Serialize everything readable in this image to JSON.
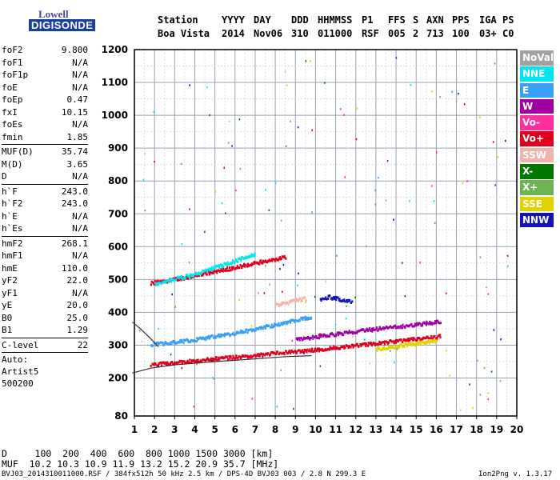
{
  "logo": {
    "line1": "Lowell",
    "line2": "DIGISONDE"
  },
  "header": {
    "labels": [
      "Station",
      "YYYY",
      "DAY",
      "DDD",
      "HHMMSS",
      "P1",
      "FFS",
      "S",
      "AXN",
      "PPS",
      "IGA",
      "PS"
    ],
    "values": [
      "Boa Vista",
      "2014",
      "Nov06",
      "310",
      "011000",
      "RSF",
      "005",
      "2",
      "713",
      "100",
      "03+",
      "C0"
    ]
  },
  "params": {
    "group1": [
      {
        "k": "foF2",
        "v": "9.800"
      },
      {
        "k": "foF1",
        "v": "N/A"
      },
      {
        "k": "foF1p",
        "v": "N/A"
      },
      {
        "k": "foE",
        "v": "N/A"
      },
      {
        "k": "foEp",
        "v": "0.47"
      },
      {
        "k": "fxI",
        "v": "10.15"
      },
      {
        "k": "foEs",
        "v": "N/A"
      },
      {
        "k": "fmin",
        "v": "1.85"
      }
    ],
    "group2": [
      {
        "k": "MUF(D)",
        "v": "35.74"
      },
      {
        "k": "M(D)",
        "v": "3.65"
      },
      {
        "k": "D",
        "v": "N/A"
      }
    ],
    "group3": [
      {
        "k": "h`F",
        "v": "243.0"
      },
      {
        "k": "h`F2",
        "v": "243.0"
      },
      {
        "k": "h`E",
        "v": "N/A"
      },
      {
        "k": "h`Es",
        "v": "N/A"
      }
    ],
    "group4": [
      {
        "k": "hmF2",
        "v": "268.1"
      },
      {
        "k": "hmF1",
        "v": "N/A"
      },
      {
        "k": "hmE",
        "v": "110.0"
      },
      {
        "k": "yF2",
        "v": "22.0"
      },
      {
        "k": "yF1",
        "v": "N/A"
      },
      {
        "k": "yE",
        "v": "20.0"
      },
      {
        "k": "B0",
        "v": "25.0"
      },
      {
        "k": "B1",
        "v": "1.29"
      }
    ],
    "clevel": {
      "k": "C-level",
      "v": "22"
    },
    "auto": [
      "Auto:",
      "Artist5",
      "500200"
    ]
  },
  "legend": [
    {
      "label": "NoVal",
      "color": "#a0a0a0"
    },
    {
      "label": "NNE",
      "color": "#00e5ee"
    },
    {
      "label": "E",
      "color": "#3aa0f5"
    },
    {
      "label": "W",
      "color": "#a000a0"
    },
    {
      "label": "Vo-",
      "color": "#ff2ea0"
    },
    {
      "label": "Vo+",
      "color": "#e0001e"
    },
    {
      "label": "SSW",
      "color": "#f2b4aa"
    },
    {
      "label": "X-",
      "color": "#007800"
    },
    {
      "label": "X+",
      "color": "#6cb450"
    },
    {
      "label": "SSE",
      "color": "#e1d200"
    },
    {
      "label": "NNW",
      "color": "#1414b4"
    }
  ],
  "footer": {
    "distance_line": "D     100  200  400  600  800 1000 1500 3000 [km]",
    "muf_line": "MUF  10.2 10.3 10.9 11.9 13.2 15.2 20.9 35.7 [MHz]",
    "file_info": "BVJ03_2014310011000.RSF / 384fx512h 50 kHz 2.5 km / DPS-4D BVJ03 003 / 2.8 N 299.3 E",
    "version": "Ion2Png v. 1.3.17"
  },
  "chart_data": {
    "type": "scatter",
    "xlim": [
      1,
      20
    ],
    "ylim": [
      80,
      1200
    ],
    "x_ticks": [
      1,
      2,
      3,
      4,
      5,
      6,
      7,
      8,
      9,
      10,
      11,
      12,
      13,
      14,
      15,
      16,
      17,
      18,
      19,
      20
    ],
    "y_ticks": [
      80,
      200,
      300,
      400,
      500,
      600,
      700,
      800,
      900,
      1000,
      1100,
      1200
    ],
    "grid": true,
    "legend_position": "right",
    "traces": [
      {
        "name": "Vo+",
        "color": "#e0001e",
        "x": [
          1.8,
          3,
          5,
          7,
          9,
          10.5,
          12,
          13.5,
          15,
          16.2
        ],
        "y": [
          243,
          250,
          262,
          272,
          284,
          292,
          302,
          312,
          322,
          330
        ]
      },
      {
        "name": "Vo+",
        "color": "#e0001e",
        "x": [
          1.8,
          3,
          4,
          5,
          6,
          7,
          8,
          8.5
        ],
        "y": [
          492,
          503,
          515,
          527,
          540,
          553,
          566,
          572
        ]
      },
      {
        "name": "W",
        "color": "#a000a0",
        "x": [
          9,
          10.5,
          12,
          13.5,
          15,
          16.2
        ],
        "y": [
          320,
          333,
          345,
          356,
          366,
          375
        ]
      },
      {
        "name": "E",
        "color": "#3aa0f5",
        "x": [
          1.8,
          3,
          4,
          5,
          6,
          7,
          8,
          9,
          9.8
        ],
        "y": [
          305,
          312,
          320,
          330,
          340,
          352,
          366,
          380,
          390
        ]
      },
      {
        "name": "NNE",
        "color": "#00e5ee",
        "x": [
          2,
          3,
          4,
          5,
          6,
          7
        ],
        "y": [
          490,
          505,
          520,
          540,
          560,
          580
        ]
      },
      {
        "name": "SSE",
        "color": "#e1d200",
        "x": [
          13,
          14,
          15,
          16
        ],
        "y": [
          292,
          300,
          308,
          316
        ]
      },
      {
        "name": "NNW",
        "color": "#1414b4",
        "x": [
          10.2,
          10.6,
          11,
          11.4,
          11.8
        ],
        "y": [
          440,
          450,
          445,
          440,
          435
        ]
      },
      {
        "name": "SSW",
        "color": "#f2b4aa",
        "x": [
          8,
          8.5,
          9,
          9.5
        ],
        "y": [
          425,
          430,
          440,
          445
        ]
      }
    ],
    "profile_lines": [
      {
        "name": "profile",
        "x": [
          0.9,
          1.8,
          3,
          5,
          7,
          8.5,
          9.8
        ],
        "y": [
          215,
          230,
          240,
          250,
          258,
          265,
          268
        ]
      },
      {
        "name": "profile-upper",
        "x": [
          0.9,
          1.3,
          1.8,
          2.2
        ],
        "y": [
          370,
          350,
          320,
          295
        ]
      }
    ]
  }
}
